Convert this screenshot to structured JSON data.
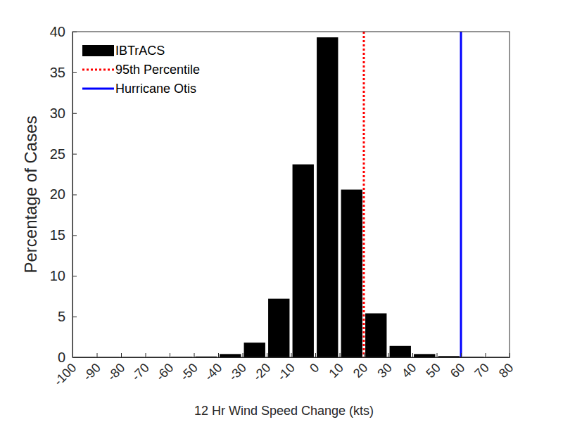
{
  "chart_data": {
    "type": "histogram",
    "x_label": "12 Hr Wind Speed Change (kts)",
    "y_label": "Percentage of Cases",
    "bins": [
      -100,
      -90,
      -80,
      -70,
      -60,
      -50,
      -40,
      -30,
      -20,
      -10,
      0,
      10,
      20,
      30,
      40,
      50,
      60,
      70,
      80
    ],
    "series": [
      {
        "name": "IBTrACS",
        "type": "bar",
        "color": "#000000",
        "values": [
          0.02,
          0.02,
          0.02,
          0.03,
          0.05,
          0.1,
          0.4,
          1.8,
          7.2,
          23.7,
          39.3,
          20.6,
          5.4,
          1.4,
          0.4,
          0.15,
          0.05,
          0.03
        ]
      },
      {
        "name": "95th Percentile",
        "type": "vline",
        "color": "#ff0000",
        "line_style": "dotted",
        "x": 20
      },
      {
        "name": "Hurricane Otis",
        "type": "vline",
        "color": "#0000ff",
        "line_style": "solid",
        "x": 60
      }
    ],
    "xlim": [
      -100,
      80
    ],
    "xticks": [
      -100,
      -90,
      -80,
      -70,
      -60,
      -50,
      -40,
      -30,
      -20,
      -10,
      0,
      10,
      20,
      30,
      40,
      50,
      60,
      70,
      80
    ],
    "ylim": [
      0,
      40
    ],
    "yticks": [
      0,
      5,
      10,
      15,
      20,
      25,
      30,
      35,
      40
    ],
    "grid": false,
    "legend": "upper-left"
  }
}
